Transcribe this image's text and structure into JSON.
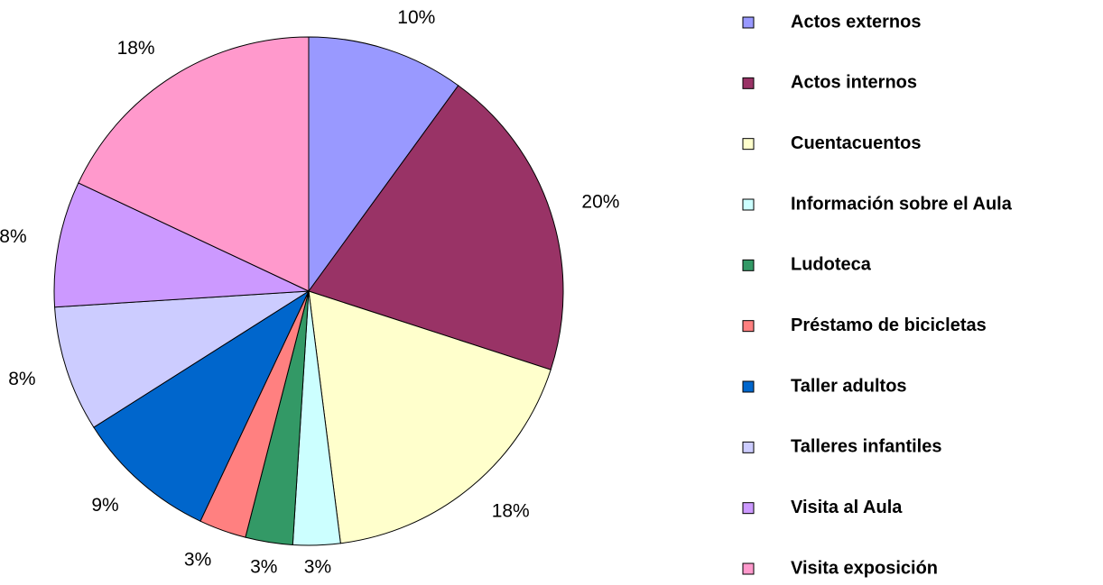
{
  "chart_data": {
    "type": "pie",
    "categories": [
      "Actos externos",
      "Actos internos",
      "Cuentacuentos",
      "Información sobre el Aula",
      "Ludoteca",
      "Préstamo de bicicletas",
      "Taller adultos",
      "Talleres infantiles",
      "Visita al Aula",
      "Visita exposición"
    ],
    "values": [
      10,
      20,
      18,
      3,
      3,
      3,
      9,
      8,
      8,
      18
    ],
    "value_labels": [
      "10%",
      "20%",
      "18%",
      "3%",
      "3%",
      "3%",
      "9%",
      "8%",
      "8%",
      "18%"
    ],
    "colors": [
      "#9999ff",
      "#993366",
      "#ffffcc",
      "#ccffff",
      "#339966",
      "#ff8080",
      "#0066cc",
      "#ccccff",
      "#cc99ff",
      "#ff99cc"
    ],
    "legend": "right"
  }
}
